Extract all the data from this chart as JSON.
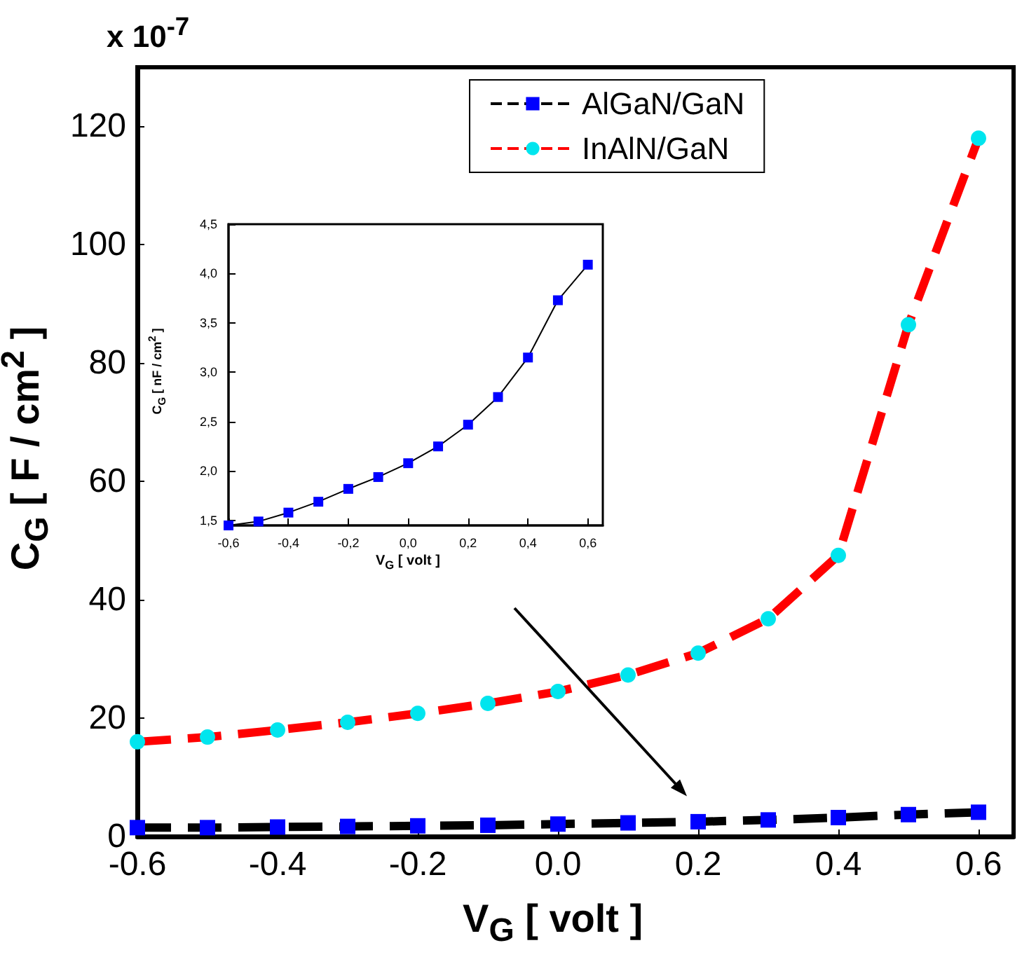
{
  "chart_data": [
    {
      "type": "line",
      "xlabel": "V$_{G}$ [ volt ]",
      "ylabel": "C$_{G}$ [ F / cm$^{2}$ ]",
      "annotations": [
        "x 10$^{-7}$"
      ],
      "x": [
        -0.6,
        -0.5,
        -0.4,
        -0.3,
        -0.2,
        -0.1,
        0.0,
        0.1,
        0.2,
        0.3,
        0.4,
        0.5,
        0.6
      ],
      "series": [
        {
          "name": "AlGaN/GaN",
          "color": "#000000",
          "marker": "square",
          "colors": [
            "#0000ff",
            "#0000ff",
            "#0000ff",
            "#0000ff",
            "#0000ff",
            "#0000ff",
            "#0000ff",
            "#0000ff",
            "#0000ff",
            "#0000ff",
            "#0000ff",
            "#0000ff",
            "#0000ff"
          ],
          "values": [
            1.5,
            1.5,
            1.6,
            1.7,
            1.8,
            1.9,
            2.1,
            2.3,
            2.5,
            2.8,
            3.2,
            3.7,
            4.1
          ]
        },
        {
          "name": "InAlN/GaN",
          "color": "#ff0000",
          "marker": "circle",
          "colors": [
            "#00e5ee",
            "#00e5ee",
            "#00e5ee",
            "#00e5ee",
            "#00e5ee",
            "#00e5ee",
            "#00e5ee",
            "#00e5ee",
            "#00e5ee",
            "#00e5ee",
            "#00e5ee",
            "#00e5ee",
            "#00e5ee"
          ],
          "values": [
            16,
            16.8,
            18,
            19.3,
            20.8,
            22.5,
            24.5,
            27.3,
            31,
            36.8,
            47.5,
            86.5,
            118
          ]
        }
      ],
      "line_style": "dashed",
      "xlim": [
        -0.6,
        0.65
      ],
      "xticks": [
        -0.6,
        -0.4,
        -0.2,
        {
          "value": 0,
          "label": "0.0"
        },
        0.2,
        0.4,
        0.6
      ],
      "ylim": [
        0,
        130
      ],
      "yticks": [
        0,
        20,
        40,
        60,
        80,
        100,
        120
      ],
      "grid": false,
      "legend": "top"
    },
    {
      "type": "line",
      "xlabel": "V$_{G}$ [ volt ]",
      "ylabel": "C$_{G}$ [ nF / cm$^{2}$ ]",
      "x": [
        -0.6,
        -0.5,
        -0.4,
        -0.3,
        -0.2,
        -0.1,
        0.0,
        0.1,
        0.2,
        0.3,
        0.4,
        0.5,
        0.6
      ],
      "series": [
        {
          "color": "#000000",
          "marker": "square",
          "colors": [
            "#0000ff",
            "#0000ff",
            "#0000ff",
            "#0000ff",
            "#0000ff",
            "#0000ff",
            "#0000ff",
            "#0000ff",
            "#0000ff",
            "#0000ff",
            "#0000ff",
            "#0000ff",
            "#0000ff"
          ],
          "values": [
            1.45,
            1.49,
            1.58,
            1.69,
            1.82,
            1.94,
            2.08,
            2.25,
            2.47,
            2.75,
            3.15,
            3.73,
            4.09
          ]
        }
      ],
      "line_style": "solid",
      "xlim": [
        -0.6,
        0.65
      ],
      "xticks": [
        {
          "value": -0.6,
          "label": "-0,6"
        },
        {
          "value": -0.4,
          "label": "-0,4"
        },
        {
          "value": -0.2,
          "label": "-0,2"
        },
        {
          "value": 0.0,
          "label": "0,0"
        },
        {
          "value": 0.2,
          "label": "0,2"
        },
        {
          "value": 0.4,
          "label": "0,4"
        },
        {
          "value": 0.6,
          "label": "0,6"
        }
      ],
      "ylim": [
        1.45,
        4.5
      ],
      "yticks": [
        {
          "value": 1.5,
          "label": "1,5"
        },
        {
          "value": 2.0,
          "label": "2,0"
        },
        {
          "value": 2.5,
          "label": "2,5"
        },
        {
          "value": 3.0,
          "label": "3,0"
        },
        {
          "value": 3.5,
          "label": "3,5"
        },
        {
          "value": 4.0,
          "label": "4,0"
        },
        {
          "value": 4.5,
          "label": "4,5"
        }
      ],
      "grid": false,
      "legend": false
    }
  ]
}
